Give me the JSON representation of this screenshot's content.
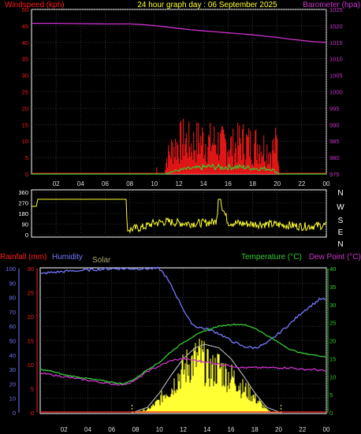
{
  "colors": {
    "background": "#000000",
    "frame": "#ffffff",
    "grid": "#555555",
    "wind_speed": "#ff1a1a",
    "wind_gust_avg": "#33cc33",
    "barometer": "#cc33cc",
    "title": "#ffff33",
    "wind_dir": "#ffff33",
    "rainfall": "#ff2020",
    "humidity": "#7777ff",
    "solar": "#ffff33",
    "solar_max": "#bbbbbb",
    "temperature": "#33cc33",
    "dew_point": "#cc33cc",
    "dir_letters": "#ffffff"
  },
  "header": {
    "left_label": "Windspeed (kph)",
    "center_label": "24 hour graph day : 06 September 2025",
    "right_label": "Barometer (hpa)"
  },
  "bottom_header": {
    "rainfall_label": "Rainfall (mm)",
    "humidity_label": "Humidity",
    "solar_label": "Solar",
    "temperature_label": "Temperature (°C)",
    "dew_point_label": "Dew Point (°C)"
  },
  "x_ticks": [
    "02",
    "04",
    "06",
    "08",
    "10",
    "12",
    "14",
    "16",
    "18",
    "20",
    "22",
    "00"
  ],
  "direction_letters": [
    "N",
    "W",
    "S",
    "E",
    "N"
  ],
  "chart_data": [
    {
      "type": "line",
      "title": "Wind speed and barometer",
      "x_unit": "hour",
      "xlim": [
        0,
        24
      ],
      "left_axis": {
        "ylim": [
          0,
          50
        ],
        "ticks": [
          "0",
          "5",
          "10",
          "15",
          "20",
          "25",
          "30",
          "35",
          "40",
          "45",
          "50"
        ]
      },
      "right_axis": {
        "ylim": [
          975,
          1025
        ],
        "ticks": [
          "975",
          "980",
          "985",
          "990",
          "995",
          "1000",
          "1005",
          "1010",
          "1015",
          "1020",
          "1025"
        ]
      },
      "series": [
        {
          "name": "Windspeed (kph)",
          "axis": "left",
          "style": "spiky",
          "x": [
            0,
            10.0,
            10.2,
            10.4,
            10.6,
            10.8,
            11.0,
            11.5,
            12.0,
            12.5,
            13.0,
            13.5,
            14.0,
            14.5,
            15.0,
            15.5,
            16.0,
            16.5,
            17.0,
            17.5,
            18.0,
            18.5,
            19.0,
            19.5,
            20.0,
            20.2,
            20.4,
            24
          ],
          "y": [
            0,
            0,
            2,
            0,
            0,
            0,
            8,
            14,
            16,
            18,
            15,
            17,
            18,
            16,
            17,
            15,
            16,
            14,
            17,
            16,
            15,
            16,
            14,
            12,
            16,
            0,
            0,
            0
          ]
        },
        {
          "name": "Wind gust average",
          "axis": "left",
          "x": [
            0,
            10.8,
            11.5,
            12.5,
            13.5,
            14.5,
            15.5,
            16.5,
            17.5,
            18.5,
            19.5,
            20.2,
            24
          ],
          "y": [
            0,
            0,
            0.8,
            1.5,
            1.8,
            2.3,
            2.0,
            2.2,
            2.0,
            1.6,
            1.6,
            0,
            0
          ]
        },
        {
          "name": "Barometer (hpa)",
          "axis": "right",
          "x": [
            0,
            2,
            4,
            6,
            8,
            9,
            10,
            11,
            12,
            13,
            14,
            15,
            16,
            17,
            18,
            19,
            20,
            21,
            22,
            23,
            24
          ],
          "y": [
            1020.8,
            1020.8,
            1020.7,
            1020.6,
            1020.6,
            1020.4,
            1020.1,
            1019.7,
            1019.2,
            1018.8,
            1018.5,
            1018.2,
            1017.9,
            1017.6,
            1017.3,
            1016.9,
            1016.5,
            1016.0,
            1015.6,
            1015.2,
            1015.0
          ]
        }
      ]
    },
    {
      "type": "line",
      "title": "Wind direction",
      "x_unit": "hour",
      "xlim": [
        0,
        24
      ],
      "ylim": [
        0,
        360
      ],
      "y_ticks": [
        "0",
        "90",
        "180",
        "270",
        "360"
      ],
      "series": [
        {
          "name": "Wind direction (deg)",
          "style": "noisy",
          "x": [
            0,
            0.4,
            0.5,
            2,
            4,
            6,
            7.7,
            7.8,
            8.2,
            9,
            10,
            11,
            12,
            13,
            14,
            15,
            15.3,
            16,
            17,
            18,
            19,
            20,
            21,
            22,
            23,
            24
          ],
          "y": [
            240,
            240,
            300,
            300,
            300,
            300,
            300,
            30,
            50,
            60,
            100,
            110,
            100,
            95,
            100,
            110,
            300,
            105,
            95,
            90,
            90,
            85,
            80,
            70,
            75,
            80
          ]
        }
      ]
    },
    {
      "type": "line",
      "title": "Rainfall, humidity, solar, temperature and dew point",
      "x_unit": "hour",
      "xlim": [
        0,
        24
      ],
      "left_axes": [
        {
          "name": "Humidity (%)",
          "ylim": [
            0,
            100
          ],
          "ticks": [
            "0",
            "10",
            "20",
            "30",
            "40",
            "50",
            "60",
            "70",
            "80",
            "90",
            "100"
          ]
        },
        {
          "name": "Rainfall (mm)",
          "ylim": [
            0,
            30
          ],
          "ticks": [
            "0",
            "5",
            "10",
            "15",
            "20",
            "25",
            "30"
          ]
        }
      ],
      "right_axis": {
        "name": "Temperature (°C)",
        "ylim": [
          0,
          40
        ],
        "ticks": [
          "0",
          "5",
          "10",
          "15",
          "20",
          "25",
          "30",
          "35",
          "40"
        ]
      },
      "series": [
        {
          "name": "Humidity",
          "axis": "humidity",
          "x": [
            0,
            0.5,
            2,
            4,
            6,
            8,
            9,
            10,
            10.5,
            11,
            11.5,
            12,
            12.5,
            13,
            14,
            15,
            16,
            17,
            18,
            19,
            20,
            21,
            22,
            23,
            23.5,
            24
          ],
          "y": [
            96,
            97,
            98,
            99,
            100,
            100,
            100,
            100,
            95,
            88,
            80,
            72,
            64,
            60,
            58,
            55,
            50,
            46,
            45,
            48,
            55,
            62,
            70,
            76,
            79,
            78
          ]
        },
        {
          "name": "Temperature (°C)",
          "axis": "temperature",
          "x": [
            0,
            1,
            2,
            3,
            4,
            5,
            6,
            7,
            8,
            9,
            10,
            11,
            12,
            13,
            14,
            15,
            16,
            17,
            18,
            19,
            20,
            21,
            22,
            23,
            24
          ],
          "y": [
            12,
            11.5,
            10.5,
            10,
            9.5,
            9,
            8.5,
            8,
            9.5,
            12,
            14,
            17,
            19.5,
            21.5,
            23,
            24,
            24.5,
            24.5,
            23.5,
            21.5,
            19.5,
            17.5,
            16.5,
            16,
            15.5
          ]
        },
        {
          "name": "Dew Point (°C)",
          "axis": "temperature",
          "x": [
            0,
            1,
            2,
            3,
            4,
            5,
            6,
            7,
            8,
            9,
            10,
            11,
            12,
            13,
            14,
            15,
            16,
            17,
            18,
            19,
            20,
            21,
            22,
            23,
            24
          ],
          "y": [
            11,
            10.5,
            10,
            9.5,
            9,
            8.5,
            8,
            7.8,
            9,
            11.5,
            13,
            14.5,
            15,
            14.5,
            14,
            13.5,
            13,
            12.5,
            12.5,
            12.5,
            12.5,
            12.5,
            12,
            12,
            11.5
          ]
        },
        {
          "name": "Solar",
          "axis": "temperature",
          "style": "filled",
          "x": [
            0,
            7.8,
            8,
            9,
            10,
            10.5,
            11,
            11.5,
            12,
            12.5,
            13,
            13.5,
            14,
            14.5,
            15,
            15.5,
            16,
            16.5,
            17,
            17.5,
            18,
            18.5,
            19,
            19.5,
            20,
            24
          ],
          "y": [
            0,
            0,
            0.3,
            1.0,
            4.0,
            7.0,
            8.0,
            12.0,
            14.0,
            16.5,
            17.5,
            18.5,
            15.0,
            14.0,
            15.5,
            13.0,
            12.0,
            11.0,
            8.0,
            7.0,
            5.0,
            3.0,
            1.0,
            0.3,
            0.2,
            0
          ]
        },
        {
          "name": "Solar max",
          "axis": "temperature",
          "x": [
            7.7,
            9,
            10,
            11,
            12,
            13,
            13.8,
            15,
            16,
            17,
            18,
            19,
            20.2
          ],
          "y": [
            0,
            1.5,
            5.5,
            10.5,
            15.0,
            18.0,
            19.0,
            18.0,
            15.0,
            10.5,
            5.5,
            1.5,
            0
          ]
        },
        {
          "name": "Rainfall (mm)",
          "axis": "rainfall",
          "x": [
            0,
            24
          ],
          "y": [
            0,
            0
          ]
        }
      ]
    }
  ]
}
